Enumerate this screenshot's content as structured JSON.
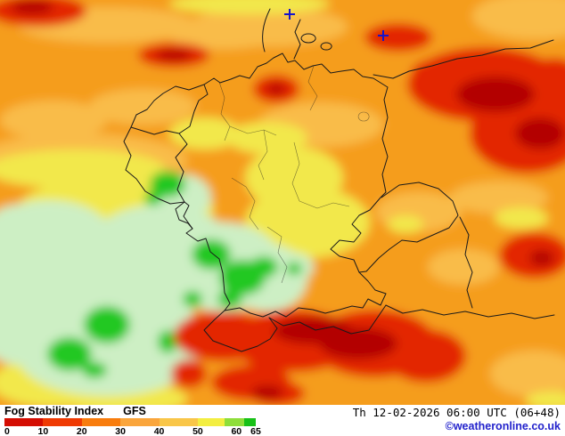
{
  "footer": {
    "index_name": "Fog Stability Index",
    "model": "GFS",
    "timestamp": "Th 12-02-2026 06:00 UTC (06+48)",
    "attribution": "©weatheronline.co.uk"
  },
  "legend": {
    "min": 0,
    "max": 65,
    "ticks": [
      "0",
      "10",
      "20",
      "30",
      "40",
      "50",
      "60",
      "65"
    ],
    "segments": [
      {
        "from": 0,
        "to": 10,
        "color": "#d40d02"
      },
      {
        "from": 10,
        "to": 20,
        "color": "#ef3a03"
      },
      {
        "from": 20,
        "to": 30,
        "color": "#f87c0d"
      },
      {
        "from": 30,
        "to": 40,
        "color": "#faa53b"
      },
      {
        "from": 40,
        "to": 50,
        "color": "#f9c648"
      },
      {
        "from": 50,
        "to": 57,
        "color": "#f3ee41"
      },
      {
        "from": 57,
        "to": 62,
        "color": "#8ede3a"
      },
      {
        "from": 62,
        "to": 65,
        "color": "#17c117"
      }
    ]
  },
  "map": {
    "region": "central-europe-germany",
    "palette": {
      "orange": "#F59D1E",
      "light_orange": "#F9BC49",
      "yellow": "#F2E84B",
      "pale_green": "#CDEFC4",
      "green": "#22C822",
      "red": "#E32702",
      "dark_red": "#B30000",
      "border": "#1a1a1a",
      "marker": "#1414CC",
      "link_blue": "#2222CC"
    },
    "field_blobs": [
      [
        "light_orange",
        120,
        28,
        100,
        20
      ],
      [
        "light_orange",
        300,
        30,
        90,
        22
      ],
      [
        "light_orange",
        600,
        18,
        70,
        26
      ],
      [
        "light_orange",
        60,
        135,
        60,
        22
      ],
      [
        "light_orange",
        160,
        120,
        60,
        20
      ],
      [
        "light_orange",
        90,
        180,
        120,
        30
      ],
      [
        "light_orange",
        470,
        238,
        48,
        22
      ],
      [
        "light_orange",
        560,
        222,
        55,
        18
      ],
      [
        "light_orange",
        360,
        140,
        70,
        25
      ],
      [
        "light_orange",
        600,
        420,
        50,
        26
      ],
      [
        "light_orange",
        520,
        300,
        40,
        20
      ],
      [
        "light_orange",
        250,
        40,
        60,
        15
      ],
      [
        "yellow",
        280,
        4,
        90,
        12
      ],
      [
        "yellow",
        85,
        190,
        100,
        22
      ],
      [
        "yellow",
        130,
        235,
        110,
        35
      ],
      [
        "yellow",
        330,
        200,
        55,
        35
      ],
      [
        "yellow",
        345,
        250,
        70,
        40
      ],
      [
        "yellow",
        300,
        155,
        45,
        18
      ],
      [
        "yellow",
        455,
        252,
        20,
        10
      ],
      [
        "yellow",
        60,
        430,
        70,
        28
      ],
      [
        "yellow",
        140,
        448,
        70,
        18
      ],
      [
        "yellow",
        230,
        150,
        40,
        18
      ],
      [
        "yellow",
        585,
        245,
        30,
        12
      ],
      [
        "yellow",
        620,
        450,
        30,
        10
      ],
      [
        "pale_green",
        100,
        330,
        120,
        85
      ],
      [
        "pale_green",
        180,
        285,
        85,
        55
      ],
      [
        "pale_green",
        55,
        265,
        70,
        40
      ],
      [
        "pale_green",
        20,
        320,
        60,
        90
      ],
      [
        "pale_green",
        120,
        400,
        100,
        45
      ],
      [
        "pale_green",
        250,
        300,
        68,
        50
      ],
      [
        "pale_green",
        300,
        312,
        45,
        38
      ],
      [
        "pale_green",
        205,
        222,
        32,
        26
      ],
      [
        "pale_green",
        190,
        382,
        30,
        28
      ],
      [
        "pale_green",
        330,
        300,
        22,
        16
      ],
      [
        "green",
        188,
        207,
        20,
        15
      ],
      [
        "green",
        172,
        223,
        10,
        8
      ],
      [
        "green",
        237,
        286,
        22,
        17
      ],
      [
        "green",
        272,
        312,
        26,
        20
      ],
      [
        "green",
        296,
        300,
        16,
        12
      ],
      [
        "green",
        258,
        336,
        14,
        10
      ],
      [
        "green",
        216,
        336,
        11,
        9
      ],
      [
        "green",
        120,
        365,
        26,
        21
      ],
      [
        "green",
        78,
        398,
        25,
        19
      ],
      [
        "green",
        106,
        416,
        14,
        9
      ],
      [
        "green",
        188,
        384,
        11,
        13
      ],
      [
        "green",
        330,
        302,
        9,
        7
      ],
      [
        "red",
        42,
        12,
        55,
        18
      ],
      [
        "red",
        195,
        62,
        40,
        14
      ],
      [
        "red",
        310,
        100,
        26,
        16
      ],
      [
        "red",
        447,
        42,
        38,
        16
      ],
      [
        "red",
        545,
        95,
        88,
        42
      ],
      [
        "red",
        592,
        150,
        65,
        45
      ],
      [
        "red",
        622,
        105,
        40,
        40
      ],
      [
        "red",
        492,
        80,
        30,
        14
      ],
      [
        "red",
        600,
        287,
        40,
        26
      ],
      [
        "red",
        250,
        378,
        55,
        28
      ],
      [
        "red",
        330,
        383,
        72,
        35
      ],
      [
        "red",
        420,
        386,
        70,
        38
      ],
      [
        "red",
        478,
        400,
        45,
        30
      ],
      [
        "red",
        282,
        430,
        45,
        20
      ],
      [
        "red",
        212,
        420,
        20,
        16
      ],
      [
        "red",
        310,
        442,
        32,
        14
      ],
      [
        "dark_red",
        36,
        8,
        24,
        8
      ],
      [
        "dark_red",
        195,
        62,
        20,
        6
      ],
      [
        "dark_red",
        310,
        100,
        10,
        6
      ],
      [
        "dark_red",
        556,
        106,
        44,
        20
      ],
      [
        "dark_red",
        606,
        150,
        28,
        18
      ],
      [
        "dark_red",
        352,
        372,
        45,
        15
      ],
      [
        "dark_red",
        402,
        386,
        44,
        18
      ],
      [
        "dark_red",
        608,
        290,
        14,
        9
      ],
      [
        "dark_red",
        300,
        441,
        18,
        8
      ]
    ]
  }
}
